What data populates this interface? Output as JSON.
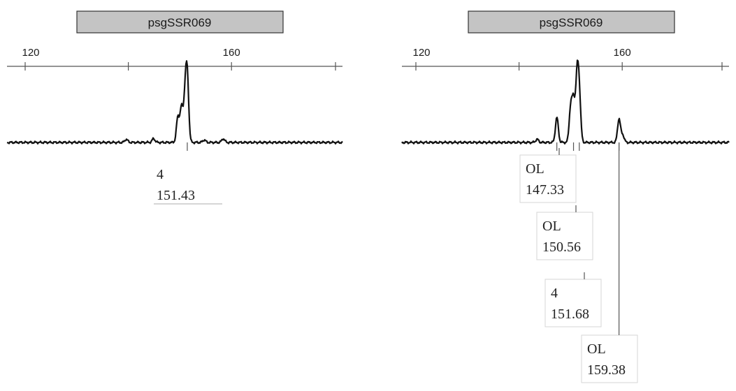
{
  "panels": [
    {
      "marker": "psgSSR069",
      "tick_labels": [
        {
          "value": 120,
          "text": "120"
        },
        {
          "value": 160,
          "text": "160"
        }
      ]
    },
    {
      "marker": "psgSSR069",
      "tick_labels": [
        {
          "value": 120,
          "text": "120"
        },
        {
          "value": 160,
          "text": "160"
        }
      ]
    }
  ],
  "chart_data": [
    {
      "type": "line",
      "title": "psgSSR069",
      "xlabel": "",
      "ylabel": "",
      "xlim": [
        114,
        166
      ],
      "x_ticks": [
        120,
        140,
        160
      ],
      "peaks": [
        {
          "x": 139.6,
          "height": 0.05
        },
        {
          "x": 144.9,
          "height": 0.06
        },
        {
          "x": 149.6,
          "height": 0.4
        },
        {
          "x": 150.3,
          "height": 0.55
        },
        {
          "x": 151.0,
          "height": 0.7
        },
        {
          "x": 151.43,
          "height": 1.0
        },
        {
          "x": 154.7,
          "height": 0.04
        },
        {
          "x": 158.4,
          "height": 0.06
        }
      ],
      "allele_calls": [
        {
          "allele": "4",
          "size": "151.43"
        }
      ]
    },
    {
      "type": "line",
      "title": "psgSSR069",
      "xlabel": "",
      "ylabel": "",
      "xlim": [
        114,
        166
      ],
      "x_ticks": [
        120,
        140,
        160
      ],
      "peaks": [
        {
          "x": 143.5,
          "height": 0.05
        },
        {
          "x": 147.33,
          "height": 0.4
        },
        {
          "x": 150.0,
          "height": 0.55
        },
        {
          "x": 150.56,
          "height": 0.65
        },
        {
          "x": 151.25,
          "height": 1.0
        },
        {
          "x": 151.68,
          "height": 0.72
        },
        {
          "x": 159.38,
          "height": 0.38
        },
        {
          "x": 160.1,
          "height": 0.12
        }
      ],
      "allele_calls": [
        {
          "allele": "OL",
          "size": "147.33"
        },
        {
          "allele": "OL",
          "size": "150.56"
        },
        {
          "allele": "4",
          "size": "151.68"
        },
        {
          "allele": "OL",
          "size": "159.38"
        }
      ]
    }
  ]
}
